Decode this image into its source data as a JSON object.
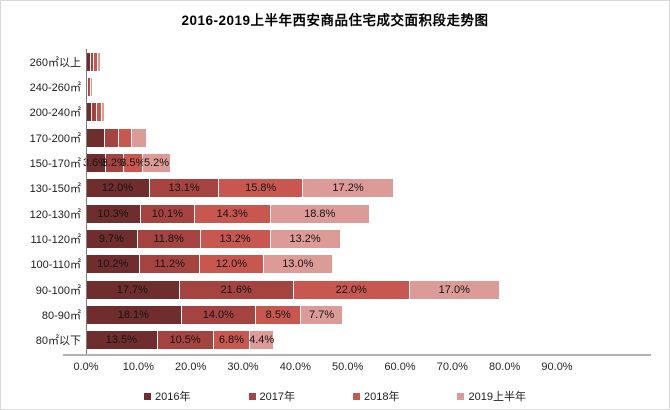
{
  "chart_data": {
    "type": "bar",
    "orientation": "horizontal",
    "stacked": true,
    "title": "2016-2019上半年西安商品住宅成交面积段走势图",
    "xlabel": "",
    "ylabel": "",
    "xlim": [
      0,
      90
    ],
    "x_ticks": [
      "0.0%",
      "10.0%",
      "20.0%",
      "30.0%",
      "40.0%",
      "50.0%",
      "60.0%",
      "70.0%",
      "80.0%",
      "90.0%"
    ],
    "grid": false,
    "legend_position": "bottom",
    "categories": [
      "260㎡以上",
      "240-260㎡",
      "200-240㎡",
      "170-200㎡",
      "150-170㎡",
      "130-150㎡",
      "120-130㎡",
      "110-120㎡",
      "100-110㎡",
      "90-100㎡",
      "80-90㎡",
      "80㎡以下"
    ],
    "show_value_labels": [
      false,
      false,
      false,
      false,
      true,
      true,
      true,
      true,
      true,
      true,
      true,
      true
    ],
    "value_label_format": "{value}%",
    "series": [
      {
        "name": "2016年",
        "color": "#6f2d2d",
        "values": [
          0.7,
          0.1,
          1.0,
          3.4,
          3.6,
          12.0,
          10.3,
          9.7,
          10.2,
          17.7,
          18.1,
          13.5
        ]
      },
      {
        "name": "2017年",
        "color": "#a54341",
        "values": [
          0.5,
          0.1,
          0.8,
          2.6,
          3.2,
          13.1,
          10.1,
          11.8,
          11.2,
          21.6,
          14.0,
          10.5
        ]
      },
      {
        "name": "2018年",
        "color": "#c8574f",
        "values": [
          0.6,
          0.2,
          0.6,
          2.2,
          3.5,
          15.8,
          14.3,
          13.2,
          12.0,
          22.0,
          8.5,
          6.8
        ]
      },
      {
        "name": "2019上半年",
        "color": "#dd9b97",
        "values": [
          0.3,
          0.1,
          0.5,
          2.7,
          5.2,
          17.2,
          18.8,
          13.2,
          13.0,
          17.0,
          7.7,
          4.4
        ]
      }
    ]
  }
}
